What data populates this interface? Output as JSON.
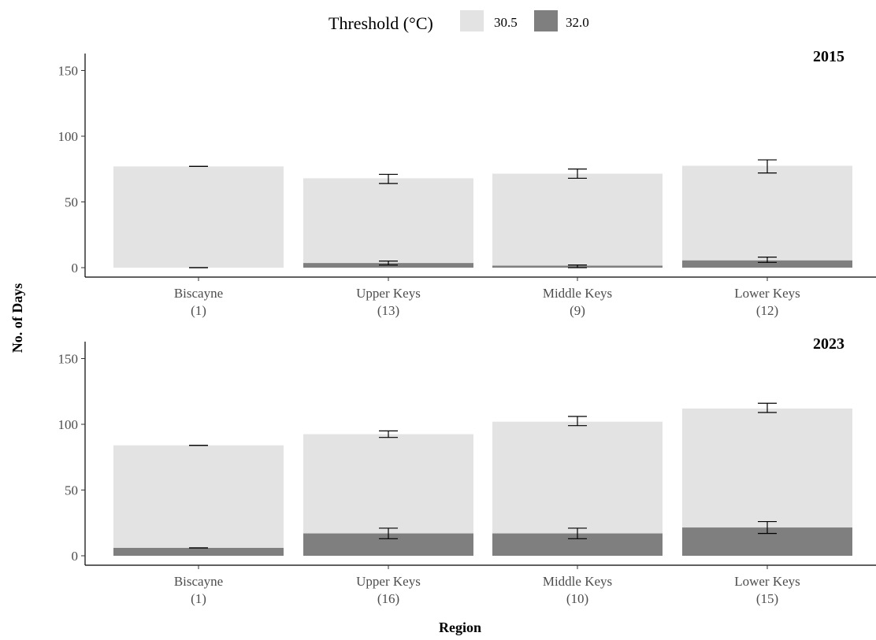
{
  "chart_data": {
    "type": "bar",
    "stacking": "overlaid",
    "xlabel": "Region",
    "ylabel": "No. of Days",
    "legend": {
      "title": "Threshold (°C)",
      "position": "top",
      "items": [
        {
          "name": "30.5",
          "color": "#e3e3e3"
        },
        {
          "name": "32.0",
          "color": "#7f7f7f"
        }
      ]
    },
    "ylim": [
      0,
      160
    ],
    "yticks": [
      0,
      50,
      100,
      150
    ],
    "grid": false,
    "panels": [
      {
        "title": "2015",
        "categories": [
          {
            "name": "Biscayne",
            "n": "(1)"
          },
          {
            "name": "Upper Keys",
            "n": "(13)"
          },
          {
            "name": "Middle Keys",
            "n": "(9)"
          },
          {
            "name": "Lower Keys",
            "n": "(12)"
          }
        ],
        "series": [
          {
            "name": "30.5",
            "color": "#e3e3e3",
            "values": [
              77,
              68,
              71.5,
              77.5
            ],
            "err_low": [
              77,
              64,
              68,
              72
            ],
            "err_high": [
              77,
              71,
              75,
              82
            ]
          },
          {
            "name": "32.0",
            "color": "#7f7f7f",
            "values": [
              0,
              3.5,
              1.5,
              5.5
            ],
            "err_low": [
              0,
              2,
              0,
              4
            ],
            "err_high": [
              0,
              5,
              2,
              8
            ]
          }
        ]
      },
      {
        "title": "2023",
        "categories": [
          {
            "name": "Biscayne",
            "n": "(1)"
          },
          {
            "name": "Upper Keys",
            "n": "(16)"
          },
          {
            "name": "Middle Keys",
            "n": "(10)"
          },
          {
            "name": "Lower Keys",
            "n": "(15)"
          }
        ],
        "series": [
          {
            "name": "30.5",
            "color": "#e3e3e3",
            "values": [
              84,
              92.5,
              102,
              112
            ],
            "err_low": [
              84,
              90,
              99,
              109
            ],
            "err_high": [
              84,
              95,
              106,
              116
            ]
          },
          {
            "name": "32.0",
            "color": "#7f7f7f",
            "values": [
              6,
              17,
              17,
              21.5
            ],
            "err_low": [
              6,
              13,
              13,
              17
            ],
            "err_high": [
              6,
              21,
              21,
              26
            ]
          }
        ]
      }
    ]
  }
}
